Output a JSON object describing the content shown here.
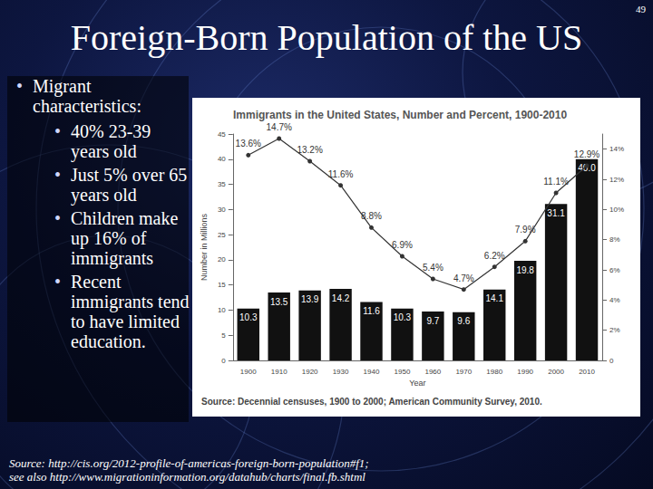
{
  "slide": {
    "page_number": "49",
    "title": "Foreign-Born Population of the US",
    "bullet": "Migrant characteristics:",
    "sub_bullets": [
      "40% 23-39 years old",
      "Just 5% over 65 years old",
      "Children make up 16% of immigrants",
      "Recent immigrants tend to have limited education."
    ],
    "source": [
      "Source: http://cis.org/2012-profile-of-americas-foreign-born-population#f1;",
      "see also http://www.migrationinformation.org/datahub/charts/final.fb.shtml"
    ]
  },
  "chart_data": {
    "type": "bar",
    "title": "Immigrants in the United States, Number and Percent, 1900-2010",
    "xlabel": "Year",
    "ylabel": "Number in Millions",
    "annotations": [
      "Source: Decennial censuses, 1900 to 2000; American Community Survey, 2010."
    ],
    "categories": [
      "1900",
      "1910",
      "1920",
      "1930",
      "1940",
      "1950",
      "1960",
      "1970",
      "1980",
      "1990",
      "2000",
      "2010"
    ],
    "series": [
      {
        "type": "bar",
        "color": "#111111",
        "values": [
          10.3,
          13.5,
          13.9,
          14.2,
          11.6,
          10.3,
          9.7,
          9.6,
          14.1,
          19.8,
          31.1,
          40.0
        ],
        "value_labels": [
          "10.3",
          "13.5",
          "13.9",
          "14.2",
          "11.6",
          "10.3",
          "9.7",
          "9.6",
          "14.1",
          "19.8",
          "31.1",
          "40.0"
        ]
      },
      {
        "type": "line",
        "axis": "y2",
        "color": "#333333",
        "marker": "circle",
        "values": [
          13.6,
          14.7,
          13.2,
          11.6,
          8.8,
          6.9,
          5.4,
          4.7,
          6.2,
          7.9,
          11.1,
          12.9
        ],
        "value_labels": [
          "13.6%",
          "14.7%",
          "13.2%",
          "11.6%",
          "8.8%",
          "6.9%",
          "5.4%",
          "4.7%",
          "6.2%",
          "7.9%",
          "11.1%",
          "12.9%"
        ]
      }
    ],
    "ylim": [
      0,
      45
    ],
    "yticks": [
      0,
      5,
      10,
      15,
      20,
      25,
      30,
      35,
      40,
      45
    ],
    "y2lim": [
      0,
      15
    ],
    "y2ticks": [
      0,
      {
        "value": 2,
        "label": "2%"
      },
      {
        "value": 4,
        "label": "4%"
      },
      {
        "value": 6,
        "label": "6%"
      },
      {
        "value": 8,
        "label": "8%"
      },
      {
        "value": 10,
        "label": "10%"
      },
      {
        "value": 12,
        "label": "12%"
      },
      {
        "value": 14,
        "label": "14%"
      }
    ],
    "grid": false,
    "data_labels": true
  }
}
